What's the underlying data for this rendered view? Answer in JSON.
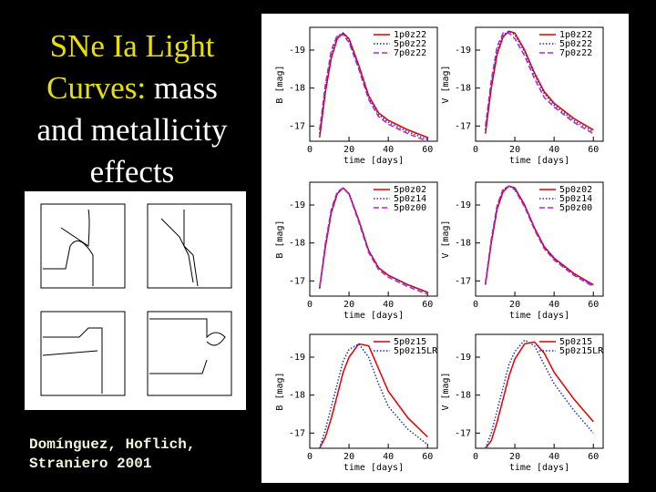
{
  "title": {
    "highlight": [
      "SNe Ia Light",
      "Curves:"
    ],
    "rest": [
      "mass",
      "and metallicity",
      "effects"
    ]
  },
  "citation": [
    "Domínguez, Hoflich,",
    "Straniero 2001"
  ],
  "figure": {
    "panels": [
      {
        "type": "line",
        "ylabel": "B [mag]",
        "xlabel": "time [days]",
        "xlim": [
          0,
          65
        ],
        "xticks": [
          0,
          20,
          40,
          60
        ],
        "ylim": [
          -16.6,
          -19.6
        ],
        "yticks": [
          -19,
          -18,
          -17
        ],
        "x": [
          5,
          8,
          11,
          14,
          17,
          20,
          25,
          30,
          35,
          40,
          50,
          60
        ],
        "series": [
          {
            "name": "1p0z22",
            "color": "#e00000",
            "style": "solid",
            "values": [
              -16.7,
              -17.9,
              -18.8,
              -19.3,
              -19.45,
              -19.3,
              -18.6,
              -17.8,
              -17.35,
              -17.15,
              -16.9,
              -16.7
            ]
          },
          {
            "name": "5p0z22",
            "color": "#2030c0",
            "style": "dotted",
            "values": [
              -16.8,
              -18.0,
              -18.9,
              -19.35,
              -19.45,
              -19.25,
              -18.55,
              -17.75,
              -17.3,
              -17.1,
              -16.85,
              -16.65
            ]
          },
          {
            "name": "7p0z22",
            "color": "#c020c0",
            "style": "dashed",
            "values": [
              -16.9,
              -18.1,
              -19.0,
              -19.4,
              -19.4,
              -19.2,
              -18.5,
              -17.7,
              -17.25,
              -17.05,
              -16.8,
              -16.6
            ]
          }
        ]
      },
      {
        "type": "line",
        "ylabel": "V [mag]",
        "xlabel": "time [days]",
        "xlim": [
          0,
          65
        ],
        "xticks": [
          0,
          20,
          40,
          60
        ],
        "ylim": [
          -16.6,
          -19.6
        ],
        "yticks": [
          -19,
          -18,
          -17
        ],
        "x": [
          5,
          8,
          11,
          14,
          17,
          20,
          25,
          30,
          35,
          40,
          50,
          60
        ],
        "series": [
          {
            "name": "1p0z22",
            "color": "#e00000",
            "style": "solid",
            "values": [
              -16.8,
              -18.0,
              -18.9,
              -19.35,
              -19.5,
              -19.45,
              -19.0,
              -18.4,
              -17.9,
              -17.6,
              -17.2,
              -16.9
            ]
          },
          {
            "name": "5p0z22",
            "color": "#2030c0",
            "style": "dotted",
            "values": [
              -16.9,
              -18.1,
              -19.0,
              -19.4,
              -19.5,
              -19.4,
              -18.95,
              -18.35,
              -17.85,
              -17.55,
              -17.15,
              -16.85
            ]
          },
          {
            "name": "7p0z22",
            "color": "#c020c0",
            "style": "dashed",
            "values": [
              -17.0,
              -18.2,
              -19.1,
              -19.45,
              -19.45,
              -19.3,
              -18.85,
              -18.25,
              -17.75,
              -17.5,
              -17.1,
              -16.8
            ]
          }
        ]
      },
      {
        "type": "line",
        "ylabel": "B [mag]",
        "xlabel": "time [days]",
        "xlim": [
          0,
          65
        ],
        "xticks": [
          0,
          20,
          40,
          60
        ],
        "ylim": [
          -16.6,
          -19.6
        ],
        "yticks": [
          -19,
          -18,
          -17
        ],
        "x": [
          5,
          8,
          11,
          14,
          17,
          20,
          25,
          30,
          35,
          40,
          50,
          60
        ],
        "series": [
          {
            "name": "5p0z02",
            "color": "#e00000",
            "style": "solid",
            "values": [
              -16.8,
              -17.9,
              -18.8,
              -19.3,
              -19.45,
              -19.3,
              -18.6,
              -17.8,
              -17.35,
              -17.15,
              -16.9,
              -16.7
            ]
          },
          {
            "name": "5p0z14",
            "color": "#2030c0",
            "style": "dotted",
            "values": [
              -16.8,
              -17.95,
              -18.85,
              -19.3,
              -19.45,
              -19.3,
              -18.6,
              -17.8,
              -17.35,
              -17.15,
              -16.9,
              -16.7
            ]
          },
          {
            "name": "5p0z00",
            "color": "#c020c0",
            "style": "dashed",
            "values": [
              -16.85,
              -18.0,
              -18.9,
              -19.35,
              -19.45,
              -19.28,
              -18.55,
              -17.75,
              -17.3,
              -17.1,
              -16.85,
              -16.65
            ]
          }
        ]
      },
      {
        "type": "line",
        "ylabel": "V [mag]",
        "xlabel": "time [days]",
        "xlim": [
          0,
          65
        ],
        "xticks": [
          0,
          20,
          40,
          60
        ],
        "ylim": [
          -16.6,
          -19.6
        ],
        "yticks": [
          -19,
          -18,
          -17
        ],
        "x": [
          5,
          8,
          11,
          14,
          17,
          20,
          25,
          30,
          35,
          40,
          50,
          60
        ],
        "series": [
          {
            "name": "5p0z02",
            "color": "#e00000",
            "style": "solid",
            "values": [
              -16.9,
              -18.0,
              -18.9,
              -19.35,
              -19.5,
              -19.45,
              -19.0,
              -18.4,
              -17.9,
              -17.6,
              -17.2,
              -16.9
            ]
          },
          {
            "name": "5p0z14",
            "color": "#2030c0",
            "style": "dotted",
            "values": [
              -16.9,
              -18.05,
              -18.95,
              -19.4,
              -19.5,
              -19.43,
              -18.98,
              -18.38,
              -17.88,
              -17.58,
              -17.18,
              -16.88
            ]
          },
          {
            "name": "5p0z00",
            "color": "#c020c0",
            "style": "dashed",
            "values": [
              -16.95,
              -18.1,
              -19.0,
              -19.42,
              -19.5,
              -19.4,
              -18.95,
              -18.35,
              -17.85,
              -17.55,
              -17.15,
              -16.85
            ]
          }
        ]
      },
      {
        "type": "line",
        "ylabel": "B [mag]",
        "xlabel": "time [days]",
        "xlim": [
          0,
          65
        ],
        "xticks": [
          0,
          20,
          40,
          60
        ],
        "ylim": [
          -16.6,
          -19.6
        ],
        "yticks": [
          -19,
          -18,
          -17
        ],
        "x": [
          5,
          8,
          11,
          14,
          17,
          20,
          25,
          30,
          35,
          40,
          50,
          60
        ],
        "series": [
          {
            "name": "5p0z15",
            "color": "#e00000",
            "style": "solid",
            "values": [
              -16.6,
              -16.9,
              -17.4,
              -18.0,
              -18.6,
              -19.0,
              -19.35,
              -19.3,
              -18.7,
              -18.1,
              -17.4,
              -16.9
            ]
          },
          {
            "name": "5p0z15LR",
            "color": "#2030c0",
            "style": "dotted",
            "values": [
              -16.6,
              -17.1,
              -17.7,
              -18.3,
              -18.9,
              -19.2,
              -19.35,
              -19.0,
              -18.3,
              -17.7,
              -17.1,
              -16.7
            ]
          }
        ]
      },
      {
        "type": "line",
        "ylabel": "V [mag]",
        "xlabel": "time [days]",
        "xlim": [
          0,
          65
        ],
        "xticks": [
          0,
          20,
          40,
          60
        ],
        "ylim": [
          -16.6,
          -19.6
        ],
        "yticks": [
          -19,
          -18,
          -17
        ],
        "x": [
          5,
          8,
          11,
          14,
          17,
          20,
          25,
          30,
          35,
          40,
          50,
          60
        ],
        "series": [
          {
            "name": "5p0z15",
            "color": "#e00000",
            "style": "solid",
            "values": [
              -16.6,
              -16.8,
              -17.3,
              -17.9,
              -18.5,
              -18.95,
              -19.35,
              -19.4,
              -19.1,
              -18.6,
              -17.9,
              -17.3
            ]
          },
          {
            "name": "5p0z15LR",
            "color": "#2030c0",
            "style": "dotted",
            "values": [
              -16.6,
              -17.0,
              -17.6,
              -18.2,
              -18.8,
              -19.15,
              -19.45,
              -19.3,
              -18.8,
              -18.3,
              -17.6,
              -17.0
            ]
          }
        ]
      }
    ]
  }
}
